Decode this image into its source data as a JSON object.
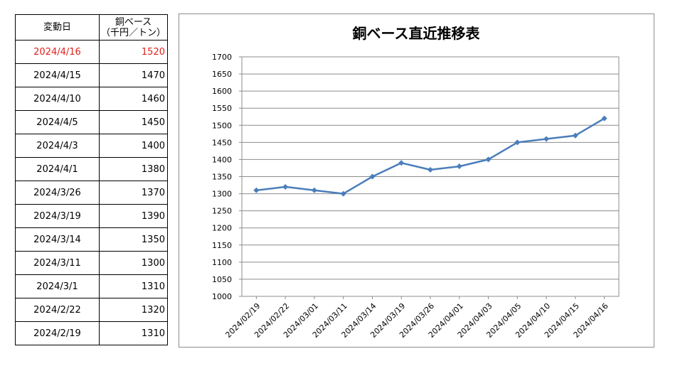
{
  "table": {
    "header": {
      "col1": "変動日",
      "col2_line1": "銅ベース",
      "col2_line2": "（千円／トン）"
    },
    "rows": [
      {
        "date": "2024/4/16",
        "price": "1520"
      },
      {
        "date": "2024/4/15",
        "price": "1470"
      },
      {
        "date": "2024/4/10",
        "price": "1460"
      },
      {
        "date": "2024/4/5",
        "price": "1450"
      },
      {
        "date": "2024/4/3",
        "price": "1400"
      },
      {
        "date": "2024/4/1",
        "price": "1380"
      },
      {
        "date": "2024/3/26",
        "price": "1370"
      },
      {
        "date": "2024/3/19",
        "price": "1390"
      },
      {
        "date": "2024/3/14",
        "price": "1350"
      },
      {
        "date": "2024/3/11",
        "price": "1300"
      },
      {
        "date": "2024/3/1",
        "price": "1310"
      },
      {
        "date": "2024/2/22",
        "price": "1320"
      },
      {
        "date": "2024/2/19",
        "price": "1310"
      }
    ],
    "highlight_color": "#e0201b"
  },
  "chart_data": {
    "type": "line",
    "title": "銅ベース直近推移表",
    "categories": [
      "2024/02/19",
      "2024/02/22",
      "2024/03/01",
      "2024/03/11",
      "2024/03/14",
      "2024/03/19",
      "2024/03/26",
      "2024/04/01",
      "2024/04/03",
      "2024/04/05",
      "2024/04/10",
      "2024/04/15",
      "2024/04/16"
    ],
    "series": [
      {
        "values": [
          1310,
          1320,
          1310,
          1300,
          1350,
          1390,
          1370,
          1380,
          1400,
          1450,
          1460,
          1470,
          1520
        ],
        "color": "#4a7ebb"
      }
    ],
    "ylim": [
      1000,
      1700
    ],
    "ytick_step": 50,
    "grid": true,
    "legend": "none",
    "xlabel": "",
    "ylabel": ""
  }
}
